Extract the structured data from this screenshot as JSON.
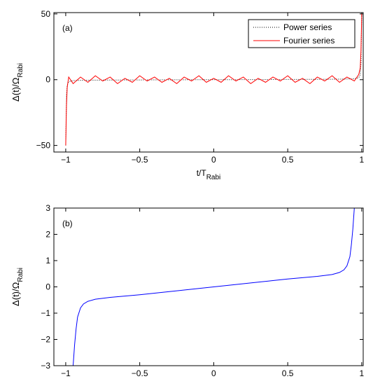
{
  "chart_data": [
    {
      "type": "line",
      "panel_label": "(a)",
      "xlabel": "t/T",
      "xlabel_subscript": "Rabi",
      "ylabel": "Δ(t)/Ω",
      "ylabel_subscript": "Rabi",
      "xlim": [
        -1.08,
        1.01
      ],
      "ylim": [
        -55,
        51
      ],
      "xticks": [
        -1,
        -0.5,
        0,
        0.5,
        1
      ],
      "yticks": [
        -50,
        0,
        50
      ],
      "xtick_labels": [
        "−1",
        "−0.5",
        "0",
        "0.5",
        "1"
      ],
      "ytick_labels": [
        "−50",
        "0",
        "50"
      ],
      "legend": "upper right",
      "x": [
        -1,
        -0.995,
        -0.99,
        -0.98,
        -0.95,
        -0.9,
        -0.85,
        -0.8,
        -0.75,
        -0.7,
        -0.65,
        -0.6,
        -0.55,
        -0.5,
        -0.45,
        -0.4,
        -0.35,
        -0.3,
        -0.25,
        -0.2,
        -0.15,
        -0.1,
        -0.05,
        0,
        0.05,
        0.1,
        0.15,
        0.2,
        0.25,
        0.3,
        0.35,
        0.4,
        0.45,
        0.5,
        0.55,
        0.6,
        0.65,
        0.7,
        0.75,
        0.8,
        0.85,
        0.9,
        0.95,
        0.98,
        0.99,
        0.995,
        1
      ],
      "series": [
        {
          "name": "Power series",
          "color": "#000000",
          "linestyle": "dotted",
          "values": [
            -50,
            -12,
            -4,
            -1.5,
            -0.7,
            -0.5,
            -0.4,
            -0.35,
            -0.3,
            -0.28,
            -0.25,
            -0.22,
            -0.2,
            -0.18,
            -0.15,
            -0.13,
            -0.1,
            -0.08,
            -0.06,
            -0.04,
            -0.03,
            -0.02,
            -0.01,
            0,
            0.01,
            0.02,
            0.03,
            0.04,
            0.06,
            0.08,
            0.1,
            0.13,
            0.15,
            0.18,
            0.2,
            0.22,
            0.25,
            0.28,
            0.3,
            0.35,
            0.4,
            0.5,
            0.7,
            1.5,
            4,
            12,
            50
          ]
        },
        {
          "name": "Fourier series",
          "color": "#ff0000",
          "linestyle": "solid",
          "values": [
            -50,
            -20,
            -6,
            2,
            -3,
            2,
            -2,
            3,
            -1,
            2,
            -3,
            1,
            -2,
            3,
            -1,
            2,
            -2,
            1,
            -3,
            2,
            -1,
            3,
            -2,
            1,
            -2,
            3,
            -1,
            2,
            -3,
            1,
            -2,
            2,
            -1,
            3,
            -2,
            1,
            -3,
            2,
            -1,
            3,
            -2,
            2,
            -1,
            4,
            9,
            22,
            50
          ]
        }
      ]
    },
    {
      "type": "line",
      "panel_label": "(b)",
      "xlabel": "t/T",
      "xlabel_subscript": "Rabi",
      "ylabel": "Δ(t)/Ω",
      "ylabel_subscript": "Rabi",
      "xlim": [
        -1.08,
        1.01
      ],
      "ylim": [
        -3,
        3
      ],
      "xticks": [
        -1,
        -0.5,
        0,
        0.5,
        1
      ],
      "yticks": [
        -3,
        -2,
        -1,
        0,
        1,
        2,
        3
      ],
      "xtick_labels": [
        "−1",
        "−0.5",
        "0",
        "0.5",
        "1"
      ],
      "ytick_labels": [
        "−3",
        "−2",
        "−1",
        "0",
        "1",
        "2",
        "3"
      ],
      "x": [
        -0.95,
        -0.94,
        -0.93,
        -0.92,
        -0.9,
        -0.88,
        -0.85,
        -0.8,
        -0.7,
        -0.6,
        -0.5,
        -0.4,
        -0.3,
        -0.2,
        -0.1,
        0,
        0.1,
        0.2,
        0.3,
        0.4,
        0.5,
        0.6,
        0.7,
        0.8,
        0.85,
        0.88,
        0.9,
        0.92,
        0.93,
        0.94,
        0.95
      ],
      "series": [
        {
          "color": "#0000ff",
          "linestyle": "solid",
          "values": [
            -3,
            -2.2,
            -1.6,
            -1.15,
            -0.8,
            -0.65,
            -0.55,
            -0.47,
            -0.4,
            -0.35,
            -0.3,
            -0.24,
            -0.18,
            -0.12,
            -0.06,
            0,
            0.06,
            0.12,
            0.18,
            0.24,
            0.3,
            0.35,
            0.4,
            0.47,
            0.55,
            0.65,
            0.8,
            1.15,
            1.6,
            2.2,
            3
          ]
        }
      ]
    }
  ]
}
